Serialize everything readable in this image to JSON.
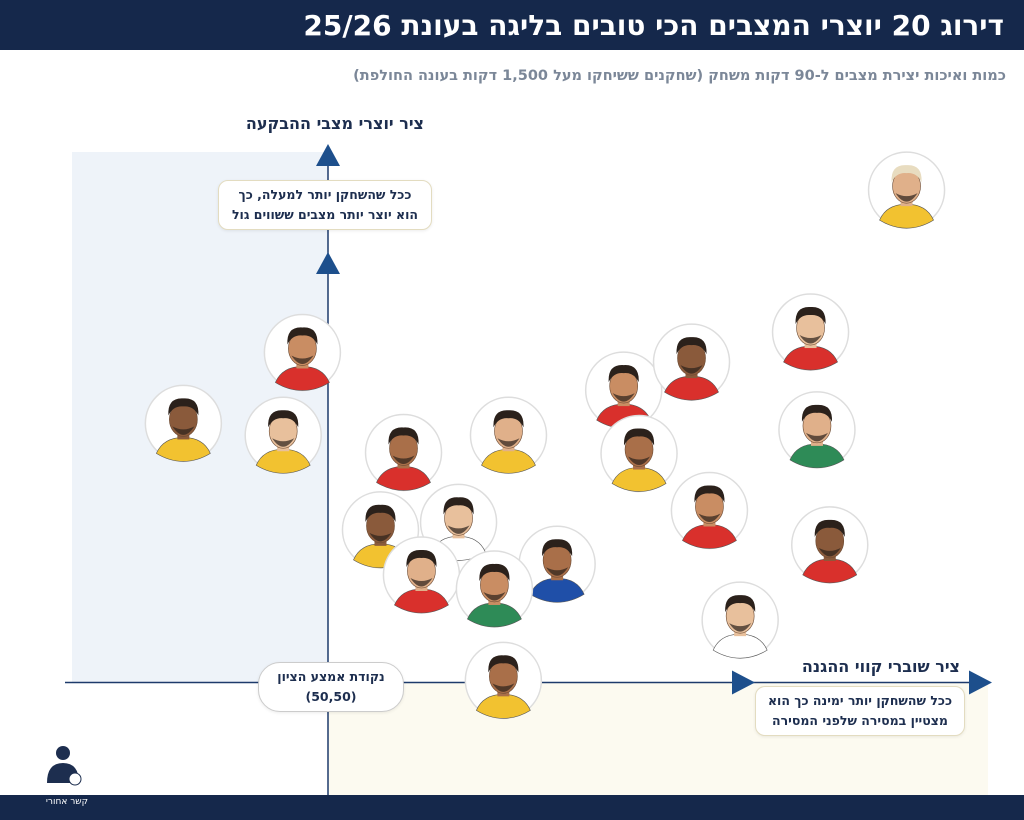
{
  "chart_data": {
    "type": "scatter",
    "title": "דירוג 20 יוצרי המצבים הכי טובים בליגה בעונת 25/26",
    "subtitle": "כמות ואיכות יצירת מצבים ל-90 דקות משחק (שחקנים ששיחקו מעל 1,500 דקות בעונה החולפת)",
    "y_label": "ציר יוצרי מצבי ההבקעה",
    "y_note": [
      "ככל שהשחקן יותר למעלה, כך",
      "הוא יוצר יותר מצבים ששווים גול"
    ],
    "x_label": "ציר שוברי קווי ההגנה",
    "x_note": [
      "ככל שהשחקן יותר ימינה כך הוא",
      "מצטיין במסירה שלפני המסירה"
    ],
    "midpoint_title": "נקודת אמצע הציון",
    "midpoint": {
      "x": 50,
      "y": 50,
      "label": "(50,50)"
    },
    "logo": "קשר אחורי",
    "xlim": [
      30,
      100
    ],
    "ylim": [
      40,
      100
    ],
    "series": [
      {
        "x": [
          95.2,
          48.0,
          38.7,
          46.5,
          55.9,
          64.1,
          73.1,
          78.4,
          87.7,
          74.3,
          88.2,
          79.8,
          54.1,
          60.2,
          67.9,
          57.3,
          63.0,
          89.2,
          82.2,
          63.7
        ],
        "values": [
          95.8,
          80.7,
          74.1,
          73.0,
          71.4,
          73.0,
          77.2,
          79.8,
          82.6,
          71.3,
          73.5,
          66.0,
          64.2,
          64.9,
          61.0,
          60.0,
          58.7,
          62.8,
          55.8,
          50.2
        ],
        "colors": [
          "#f2c230",
          "#d9302c",
          "#f2c230",
          "#f2c230",
          "#d9302c",
          "#f2c230",
          "#d9302c",
          "#d9302c",
          "#d9302c",
          "#f2c230",
          "#2e8b57",
          "#d9302c",
          "#f2c230",
          "#ffffff",
          "#1f4fa8",
          "#d9302c",
          "#2e8b57",
          "#d9302c",
          "#ffffff",
          "#f2c230"
        ]
      }
    ]
  }
}
